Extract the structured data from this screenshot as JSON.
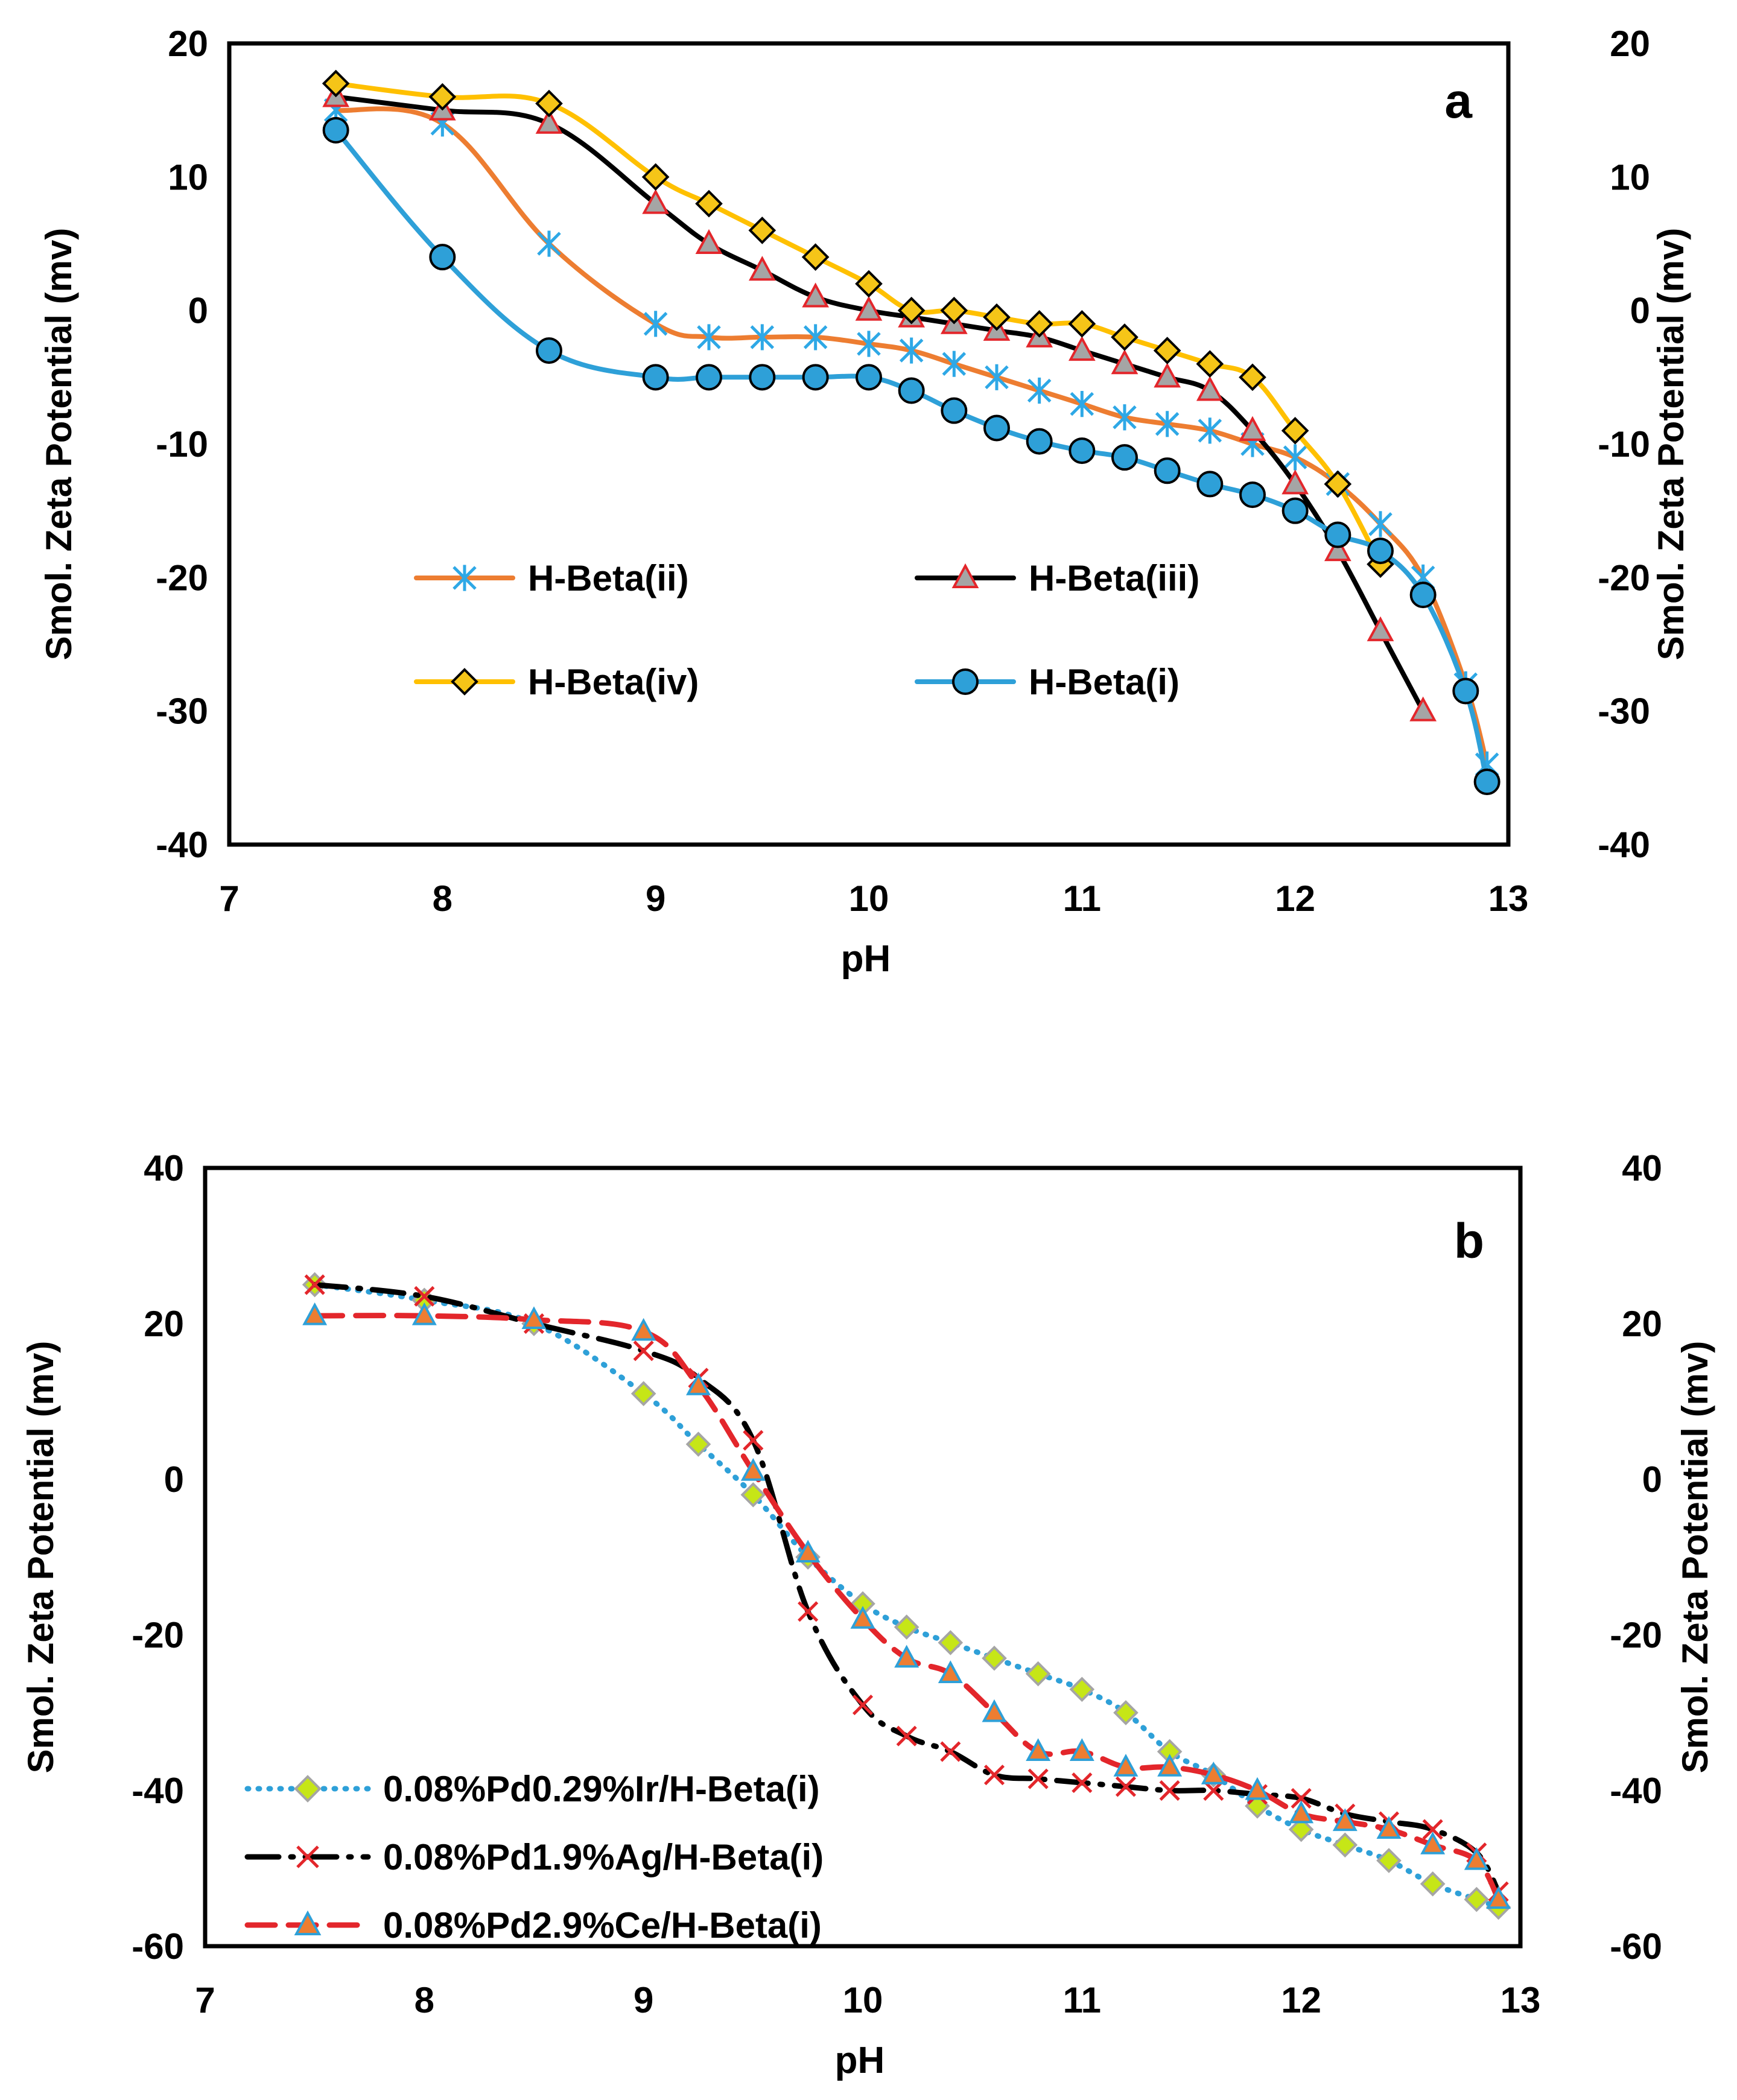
{
  "chart_data": [
    {
      "type": "line",
      "panel_label": "a",
      "xlabel": "pH",
      "ylabel": "Smol. Zeta Potential (mv)",
      "ylabel_right": "Smol. Zeta Potential (mv)",
      "xlim": [
        7,
        13
      ],
      "ylim": [
        -40,
        20
      ],
      "xticks": [
        "7",
        "8",
        "9",
        "10",
        "11",
        "12",
        "13"
      ],
      "yticks": [
        "20",
        "10",
        "0",
        "-10",
        "-20",
        "-30",
        "-40"
      ],
      "yticks_right": [
        "20",
        "10",
        "0",
        "-10",
        "-20",
        "-30",
        "-40"
      ],
      "series": [
        {
          "name": "H-Beta(ii)",
          "color": "#ED7D31",
          "marker": "asterisk",
          "marker_color": "#2EA8E6",
          "dash": "solid",
          "x": [
            7.5,
            8,
            8.5,
            9,
            9.25,
            9.5,
            9.75,
            10,
            10.2,
            10.4,
            10.6,
            10.8,
            11,
            11.2,
            11.4,
            11.6,
            11.8,
            12,
            12.2,
            12.4,
            12.6,
            12.8,
            12.9
          ],
          "y": [
            15,
            14,
            5,
            -1,
            -2,
            -2,
            -2,
            -2.5,
            -3,
            -4,
            -5,
            -6,
            -7,
            -8,
            -8.5,
            -9,
            -10,
            -11,
            -13,
            -16,
            -20,
            -28,
            -34
          ]
        },
        {
          "name": "H-Beta(iii)",
          "color": "#000000",
          "marker": "triangle",
          "marker_color": "#A5A5A5",
          "marker_stroke": "#E3262B",
          "dash": "solid",
          "x": [
            7.5,
            8,
            8.5,
            9,
            9.25,
            9.5,
            9.75,
            10,
            10.2,
            10.4,
            10.6,
            10.8,
            11,
            11.2,
            11.4,
            11.6,
            11.8,
            12,
            12.2,
            12.4,
            12.6
          ],
          "y": [
            16,
            15,
            14,
            8,
            5,
            3,
            1,
            0,
            -0.5,
            -1,
            -1.5,
            -2,
            -3,
            -4,
            -5,
            -6,
            -9,
            -13,
            -18,
            -24,
            -30
          ]
        },
        {
          "name": "H-Beta(iv)",
          "color": "#FFC000",
          "marker": "diamond",
          "marker_color": "#F5C518",
          "marker_stroke": "#000000",
          "dash": "solid",
          "x": [
            7.5,
            8,
            8.5,
            9,
            9.25,
            9.5,
            9.75,
            10,
            10.2,
            10.4,
            10.6,
            10.8,
            11,
            11.2,
            11.4,
            11.6,
            11.8,
            12,
            12.2,
            12.4
          ],
          "y": [
            17,
            16,
            15.5,
            10,
            8,
            6,
            4,
            2,
            0,
            0,
            -0.5,
            -1,
            -1,
            -2,
            -3,
            -4,
            -5,
            -9,
            -13,
            -19
          ]
        },
        {
          "name": "H-Beta(i)",
          "color": "#2EA0D8",
          "marker": "circle",
          "marker_color": "#2EA0D8",
          "marker_stroke": "#000000",
          "dash": "solid",
          "x": [
            7.5,
            8,
            8.5,
            9,
            9.25,
            9.5,
            9.75,
            10,
            10.2,
            10.4,
            10.6,
            10.8,
            11,
            11.2,
            11.4,
            11.6,
            11.8,
            12,
            12.2,
            12.4,
            12.6,
            12.8,
            12.9
          ],
          "y": [
            13.5,
            4,
            -3,
            -5,
            -5,
            -5,
            -5,
            -5,
            -6,
            -7.5,
            -8.8,
            -9.8,
            -10.5,
            -11,
            -12,
            -13,
            -13.8,
            -15,
            -16.8,
            -18,
            -21.3,
            -28.5,
            -35.3
          ]
        }
      ],
      "legend": [
        {
          "label": "H-Beta(ii)",
          "series": 0
        },
        {
          "label": "H-Beta(iii)",
          "series": 1
        },
        {
          "label": "H-Beta(iv)",
          "series": 2
        },
        {
          "label": "H-Beta(i)",
          "series": 3
        }
      ]
    },
    {
      "type": "line",
      "panel_label": "b",
      "xlabel": "pH",
      "ylabel": "Smol. Zeta Potential (mv)",
      "ylabel_right": "Smol. Zeta Potential (mv)",
      "xlim": [
        7,
        13
      ],
      "ylim": [
        -60,
        40
      ],
      "xticks": [
        "7",
        "8",
        "9",
        "10",
        "11",
        "12",
        "13"
      ],
      "yticks": [
        "40",
        "20",
        "0",
        "-20",
        "-40",
        "-60"
      ],
      "yticks_right": [
        "40",
        "20",
        "0",
        "-20",
        "-40",
        "-60"
      ],
      "series": [
        {
          "name": "0.08%Pd0.29%Ir/H-Beta(i)",
          "color": "#2EA0D8",
          "marker": "diamond",
          "marker_color": "#C6E617",
          "marker_stroke": "#A5A5A5",
          "dash": "dotted",
          "x": [
            7.5,
            8,
            8.5,
            9,
            9.25,
            9.5,
            9.75,
            10,
            10.2,
            10.4,
            10.6,
            10.8,
            11,
            11.2,
            11.4,
            11.6,
            11.8,
            12,
            12.2,
            12.4,
            12.6,
            12.8,
            12.9
          ],
          "y": [
            25,
            23,
            20,
            11,
            4.5,
            -2,
            -10,
            -16,
            -19,
            -21,
            -23,
            -25,
            -27,
            -30,
            -35,
            -38,
            -42,
            -45,
            -47,
            -49,
            -52,
            -54,
            -55
          ]
        },
        {
          "name": "0.08%Pd1.9%Ag/H-Beta(i)",
          "color": "#000000",
          "marker": "x",
          "marker_color": "#E3262B",
          "dash": "longdash",
          "x": [
            7.5,
            8,
            8.5,
            9,
            9.25,
            9.5,
            9.75,
            10,
            10.2,
            10.4,
            10.6,
            10.8,
            11,
            11.2,
            11.4,
            11.6,
            11.8,
            12,
            12.2,
            12.4,
            12.6,
            12.8,
            12.9
          ],
          "y": [
            25,
            23.5,
            20,
            16.5,
            13,
            5,
            -17,
            -29,
            -33,
            -35,
            -38,
            -38.5,
            -39,
            -39.5,
            -40,
            -40,
            -40.5,
            -41,
            -43,
            -44,
            -45,
            -48,
            -53
          ]
        },
        {
          "name": "0.08%Pd2.9%Ce/H-Beta(i)",
          "color": "#E3262B",
          "marker": "triangle",
          "marker_color": "#ED7D31",
          "marker_stroke": "#2EA0D8",
          "dash": "dashed",
          "x": [
            7.5,
            8,
            8.5,
            9,
            9.25,
            9.5,
            9.75,
            10,
            10.2,
            10.4,
            10.6,
            10.8,
            11,
            11.2,
            11.4,
            11.6,
            11.8,
            12,
            12.2,
            12.4,
            12.6,
            12.8,
            12.9
          ],
          "y": [
            21,
            21,
            20.5,
            19,
            12,
            1,
            -9.5,
            -18,
            -23,
            -25,
            -30,
            -35,
            -35,
            -37,
            -37,
            -38,
            -40,
            -43,
            -44,
            -45,
            -47,
            -49,
            -54
          ]
        }
      ],
      "legend": [
        {
          "label": "0.08%Pd0.29%Ir/H-Beta(i)",
          "series": 0
        },
        {
          "label": "0.08%Pd1.9%Ag/H-Beta(i)",
          "series": 1
        },
        {
          "label": "0.08%Pd2.9%Ce/H-Beta(i)",
          "series": 2
        }
      ]
    }
  ]
}
